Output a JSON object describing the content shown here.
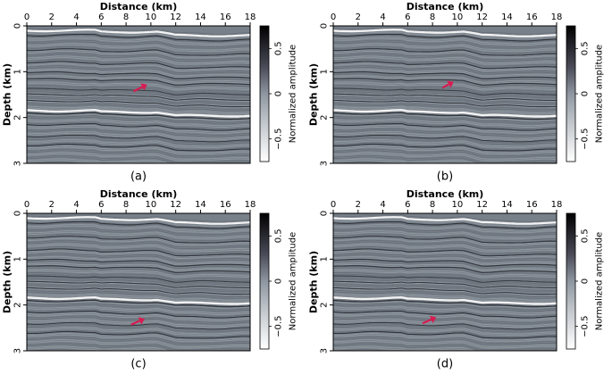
{
  "chart_data": [
    {
      "type": "heatmap",
      "panel_label": "(a)",
      "xlabel": "Distance (km)",
      "ylabel": "Depth (km)",
      "x_ticks": [
        "0",
        "2",
        "4",
        "6",
        "8",
        "10",
        "12",
        "14",
        "16",
        "18"
      ],
      "y_ticks": [
        "0",
        "1",
        "2",
        "3"
      ],
      "xlim": [
        0,
        18
      ],
      "ylim": [
        0,
        3
      ],
      "colorbar": {
        "label": "Normalized amplitude",
        "ticks": [
          "0.5",
          "0",
          "−0.5"
        ],
        "range": [
          -0.75,
          0.75
        ]
      },
      "arrow": {
        "tail": [
          8.6,
          1.43
        ],
        "head": [
          9.7,
          1.28
        ]
      }
    },
    {
      "type": "heatmap",
      "panel_label": "(b)",
      "xlabel": "Distance (km)",
      "ylabel": "Depth (km)",
      "x_ticks": [
        "0",
        "2",
        "4",
        "6",
        "8",
        "10",
        "12",
        "14",
        "16",
        "18"
      ],
      "y_ticks": [
        "0",
        "1",
        "2",
        "3"
      ],
      "xlim": [
        0,
        18
      ],
      "ylim": [
        0,
        3
      ],
      "colorbar": {
        "label": "Normalized amplitude",
        "ticks": [
          "0.5",
          "0",
          "−0.5"
        ],
        "range": [
          -0.75,
          0.75
        ]
      },
      "arrow": {
        "tail": [
          8.8,
          1.35
        ],
        "head": [
          9.7,
          1.22
        ]
      }
    },
    {
      "type": "heatmap",
      "panel_label": "(c)",
      "xlabel": "Distance (km)",
      "ylabel": "Depth (km)",
      "x_ticks": [
        "0",
        "2",
        "4",
        "6",
        "8",
        "10",
        "12",
        "14",
        "16",
        "18"
      ],
      "y_ticks": [
        "0",
        "1",
        "2",
        "3"
      ],
      "xlim": [
        0,
        18
      ],
      "ylim": [
        0,
        3
      ],
      "colorbar": {
        "label": "Normalized amplitude",
        "ticks": [
          "0.5",
          "0",
          "−0.5"
        ],
        "range": [
          -0.75,
          0.75
        ]
      },
      "arrow": {
        "tail": [
          8.4,
          2.43
        ],
        "head": [
          9.5,
          2.3
        ]
      }
    },
    {
      "type": "heatmap",
      "panel_label": "(d)",
      "xlabel": "Distance (km)",
      "ylabel": "Depth (km)",
      "x_ticks": [
        "0",
        "2",
        "4",
        "6",
        "8",
        "10",
        "12",
        "14",
        "16",
        "18"
      ],
      "y_ticks": [
        "0",
        "1",
        "2",
        "3"
      ],
      "xlim": [
        0,
        18
      ],
      "ylim": [
        0,
        3
      ],
      "colorbar": {
        "label": "Normalized amplitude",
        "ticks": [
          "0.5",
          "0",
          "−0.5"
        ],
        "range": [
          -0.75,
          0.75
        ]
      },
      "arrow": {
        "tail": [
          7.2,
          2.4
        ],
        "head": [
          8.3,
          2.27
        ]
      }
    }
  ],
  "colors": {
    "background": "#78808a",
    "arrow": "#d81b50",
    "bright_reflector": "#f4f4f4",
    "dark_reflector": "#1c1f24"
  }
}
